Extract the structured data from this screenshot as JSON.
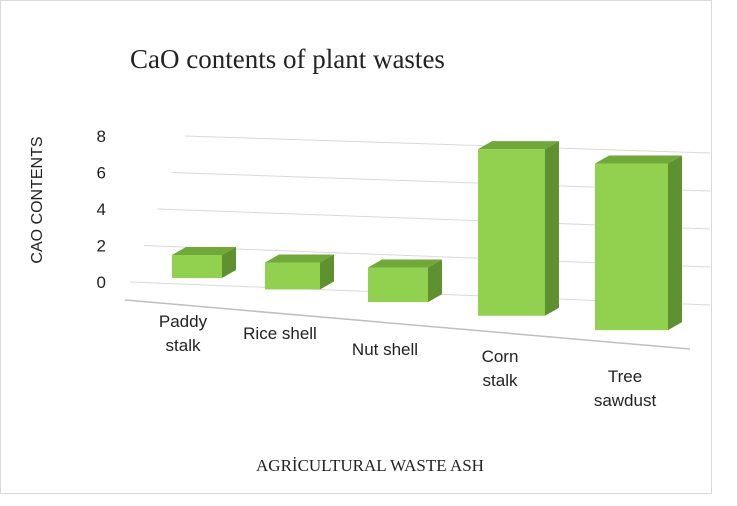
{
  "chart_data": {
    "type": "bar3d",
    "title": "CaO contents of plant wastes",
    "x_label": "AGRİCULTURAL WASTE ASH",
    "y_label": "CAO CONTENTS",
    "categories": [
      "Paddy stalk",
      "Rice shell",
      "Nut shell",
      "Corn stalk",
      "Tree sawdust"
    ],
    "values": [
      1.15,
      1.3,
      1.6,
      7.4,
      7.1
    ],
    "color": "#92d050",
    "ylim": [
      0,
      8
    ],
    "yticks": [
      0,
      2,
      4,
      6,
      8
    ],
    "grid": true
  }
}
